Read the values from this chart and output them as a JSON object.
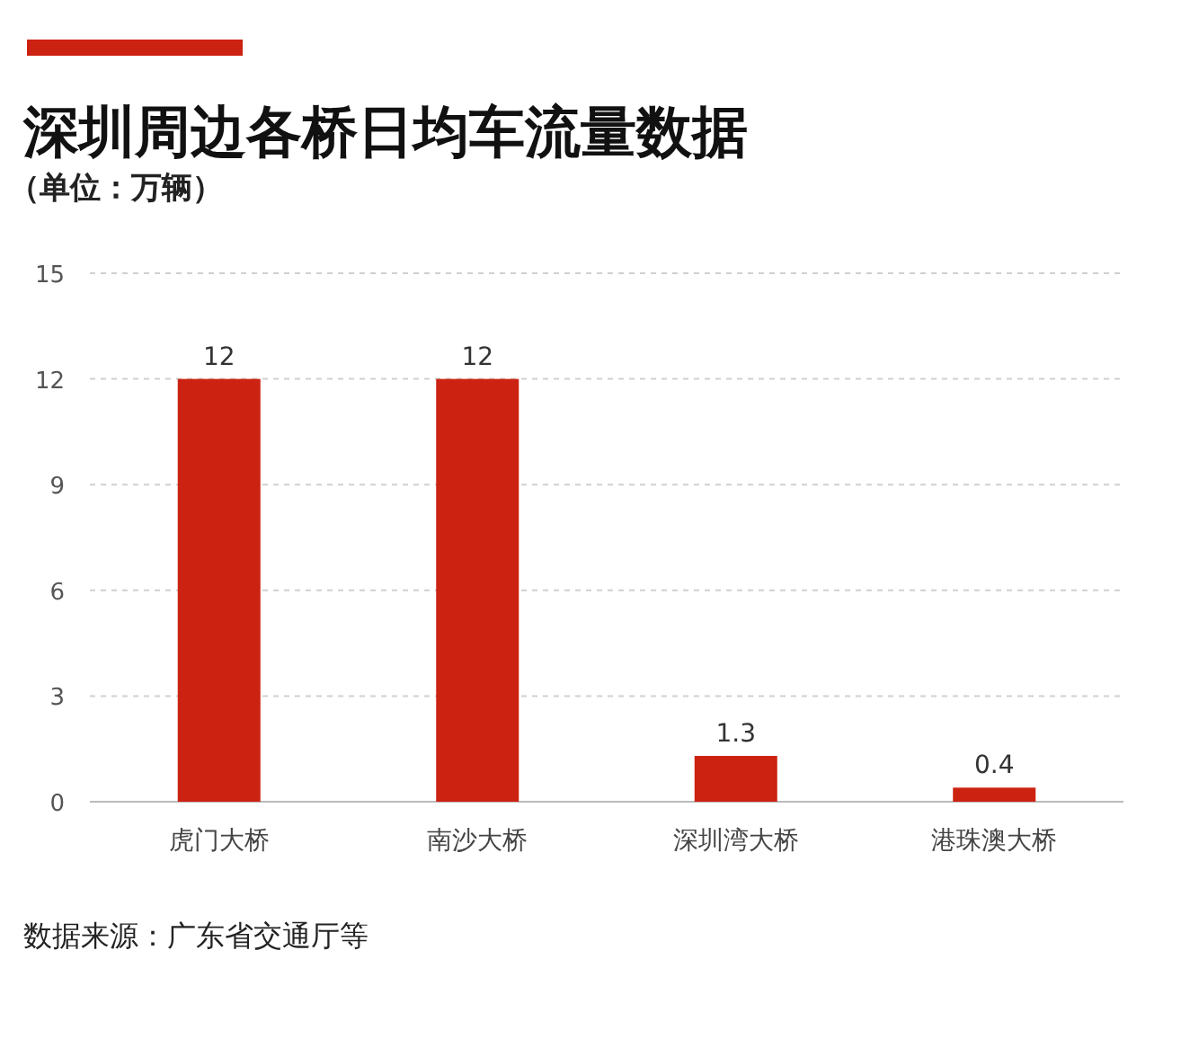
{
  "chart_data": {
    "type": "bar",
    "title": "深圳周边各桥日均车流量数据",
    "subtitle": "（单位：万辆）",
    "categories": [
      "虎门大桥",
      "南沙大桥",
      "深圳湾大桥",
      "港珠澳大桥"
    ],
    "values": [
      12,
      12,
      1.3,
      0.4
    ],
    "color": "#cc2211",
    "ylim": [
      0,
      15
    ],
    "yticks": [
      0,
      3,
      6,
      9,
      12,
      15
    ],
    "grid": "y",
    "data_labels": true,
    "annotations": [
      "数据来源：广东省交通厅等"
    ]
  }
}
